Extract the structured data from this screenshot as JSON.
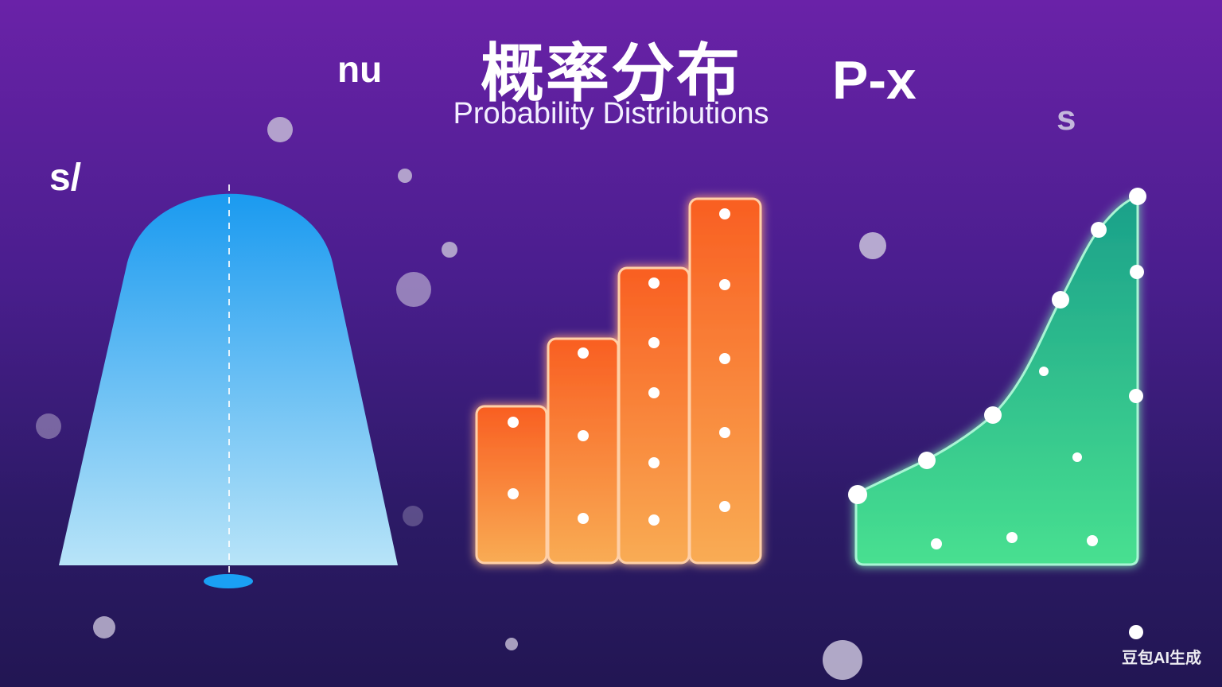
{
  "title": "概率分布",
  "subtitle": "Probability Distributions",
  "labels": {
    "nu": "nu",
    "px": "P-x",
    "s_right": "s",
    "s_left": "s/"
  },
  "watermark": "豆包AI生成",
  "colors": {
    "background_top": "#6a22a8",
    "background_bottom": "#221653",
    "bell_top": "#1a9af0",
    "bell_bottom": "#b8e4f8",
    "bars_top": "#f95f22",
    "bars_bottom": "#f9ac54",
    "curve_top": "#1aa08a",
    "curve_bottom": "#48e090"
  },
  "icons": {
    "bell": "bell-curve-shape",
    "bars": "bar-histogram",
    "curve": "cumulative-curve",
    "bubbles": "decorative-circles"
  }
}
